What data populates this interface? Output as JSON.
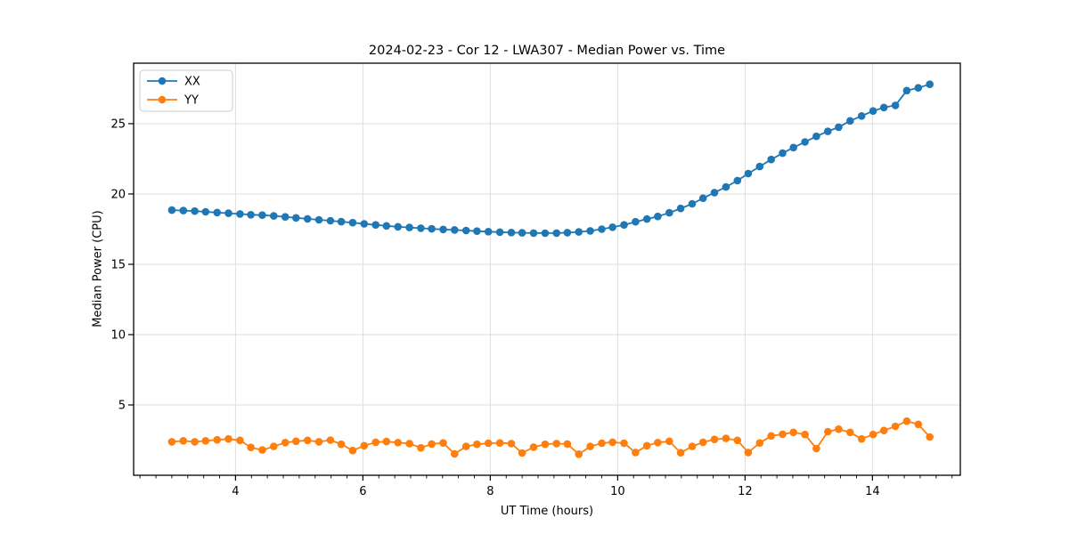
{
  "chart_data": {
    "type": "line",
    "title": "2024-02-23 - Cor 12 - LWA307 - Median Power vs. Time",
    "xlabel": "UT Time (hours)",
    "ylabel": "Median Power (CPU)",
    "xlim": [
      2.4,
      15.38
    ],
    "ylim": [
      0,
      29.3
    ],
    "xticks": [
      4,
      6,
      8,
      10,
      12,
      14
    ],
    "yticks": [
      5,
      10,
      15,
      20,
      25
    ],
    "x_minor_step": 0.25,
    "grid": true,
    "legend_position": "upper left",
    "x": [
      3.0,
      3.18,
      3.36,
      3.53,
      3.71,
      3.89,
      4.07,
      4.24,
      4.42,
      4.6,
      4.78,
      4.95,
      5.13,
      5.31,
      5.49,
      5.66,
      5.84,
      6.02,
      6.2,
      6.37,
      6.55,
      6.73,
      6.91,
      7.08,
      7.26,
      7.44,
      7.62,
      7.79,
      7.97,
      8.15,
      8.33,
      8.5,
      8.68,
      8.86,
      9.04,
      9.21,
      9.39,
      9.57,
      9.75,
      9.92,
      10.1,
      10.28,
      10.46,
      10.63,
      10.81,
      10.99,
      11.17,
      11.34,
      11.52,
      11.7,
      11.88,
      12.05,
      12.23,
      12.41,
      12.59,
      12.76,
      12.94,
      13.12,
      13.3,
      13.47,
      13.65,
      13.83,
      14.01,
      14.18,
      14.36,
      14.54,
      14.72,
      14.9
    ],
    "series": [
      {
        "name": "XX",
        "color": "#1f77b4",
        "values": [
          18.85,
          18.82,
          18.78,
          18.73,
          18.68,
          18.63,
          18.58,
          18.52,
          18.5,
          18.44,
          18.37,
          18.3,
          18.23,
          18.16,
          18.1,
          18.03,
          17.96,
          17.88,
          17.8,
          17.73,
          17.67,
          17.62,
          17.57,
          17.52,
          17.48,
          17.44,
          17.4,
          17.36,
          17.32,
          17.29,
          17.26,
          17.24,
          17.22,
          17.21,
          17.22,
          17.25,
          17.3,
          17.38,
          17.5,
          17.64,
          17.8,
          18.02,
          18.22,
          18.4,
          18.66,
          18.97,
          19.3,
          19.7,
          20.1,
          20.5,
          20.95,
          21.45,
          21.95,
          22.45,
          22.9,
          23.3,
          23.7,
          24.1,
          24.45,
          24.75,
          25.2,
          25.55,
          25.9,
          26.15,
          26.3,
          27.35,
          27.55,
          27.8
        ]
      },
      {
        "name": "YY",
        "color": "#ff7f0e",
        "values": [
          2.38,
          2.45,
          2.38,
          2.45,
          2.52,
          2.58,
          2.48,
          1.98,
          1.8,
          2.05,
          2.32,
          2.42,
          2.48,
          2.38,
          2.5,
          2.2,
          1.76,
          2.1,
          2.35,
          2.4,
          2.32,
          2.25,
          1.95,
          2.22,
          2.3,
          1.52,
          2.05,
          2.2,
          2.28,
          2.3,
          2.25,
          1.58,
          2.0,
          2.2,
          2.25,
          2.22,
          1.5,
          2.05,
          2.28,
          2.35,
          2.28,
          1.62,
          2.1,
          2.32,
          2.42,
          1.6,
          2.05,
          2.35,
          2.55,
          2.62,
          2.48,
          1.62,
          2.3,
          2.8,
          2.92,
          3.05,
          2.9,
          1.9,
          3.1,
          3.28,
          3.05,
          2.58,
          2.9,
          3.18,
          3.48,
          3.85,
          3.62,
          2.72
        ]
      }
    ],
    "style": {
      "axis_color": "#000000",
      "grid_color": "#dedede",
      "background": "#ffffff",
      "legend_border": "#cccccc",
      "marker_radius": 4.3,
      "line_width": 1.8
    }
  }
}
